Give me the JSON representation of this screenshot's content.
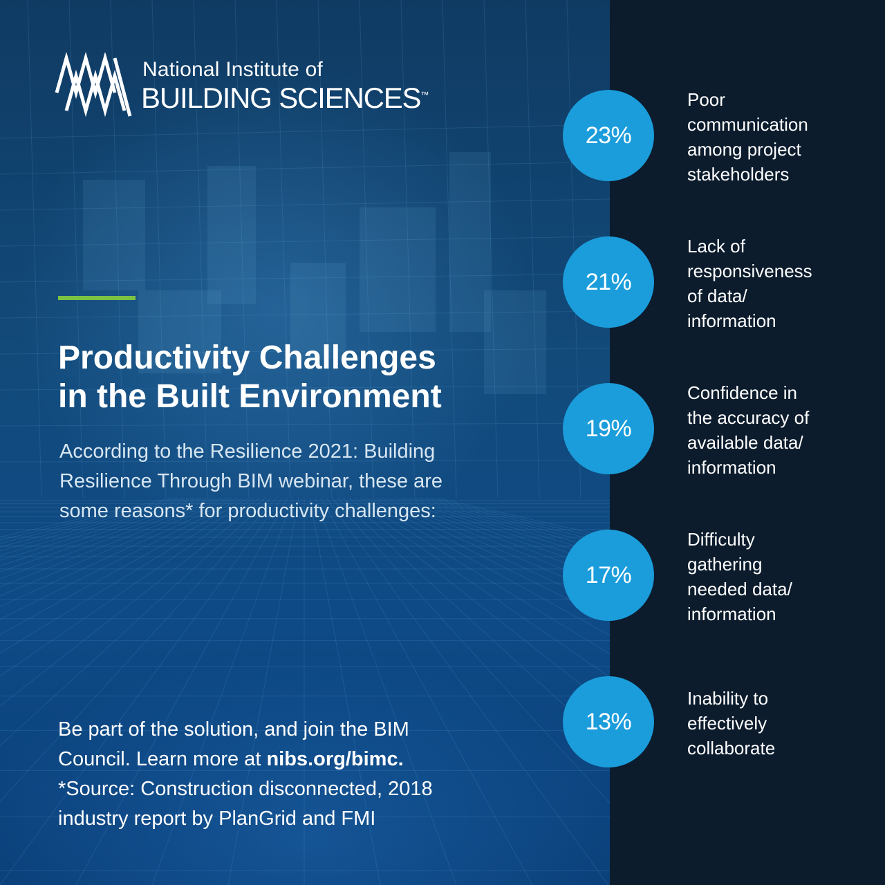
{
  "logo": {
    "line1": "National Institute of",
    "line2": "BUILDING SCIENCES",
    "trademark": "™"
  },
  "heading": {
    "line1": "Productivity Challenges",
    "line2": "in the Built Environment"
  },
  "intro": {
    "line1": "According to the Resilience 2021: Building",
    "line2": "Resilience Through BIM webinar, these are",
    "line3": "some reasons* for productivity challenges:"
  },
  "cta": {
    "line1": "Be part of the solution, and join the BIM",
    "line2_prefix": "Council. Learn more at ",
    "link": "nibs.org/bimc.",
    "line3": "*Source: Construction disconnected, 2018",
    "line4": "industry report by PlanGrid and FMI"
  },
  "chart_data": {
    "type": "table",
    "categories": [
      "Poor communication among project stakeholders",
      "Lack of responsiveness of data/ information",
      "Confidence in the accuracy of available data/ information",
      "Difficulty gathering needed data/ information",
      "Inability to effectively collaborate"
    ],
    "values": [
      23,
      21,
      19,
      17,
      13
    ],
    "unit": "%"
  },
  "stats": [
    {
      "percent": "23%",
      "lines": [
        "Poor",
        "communication",
        "among project",
        "stakeholders"
      ]
    },
    {
      "percent": "21%",
      "lines": [
        "Lack of",
        "responsiveness",
        "of data/",
        "information"
      ]
    },
    {
      "percent": "19%",
      "lines": [
        "Confidence in",
        "the accuracy of",
        "available data/",
        "information"
      ]
    },
    {
      "percent": "17%",
      "lines": [
        "Difficulty",
        "gathering",
        "needed data/",
        "information"
      ]
    },
    {
      "percent": "13%",
      "lines": [
        "Inability to",
        "effectively",
        "collaborate"
      ]
    }
  ],
  "colors": {
    "left_bg": "#0f3b63",
    "right_bg": "#0c1c2d",
    "circle": "#1b9ddb",
    "accent": "#7bc142"
  }
}
